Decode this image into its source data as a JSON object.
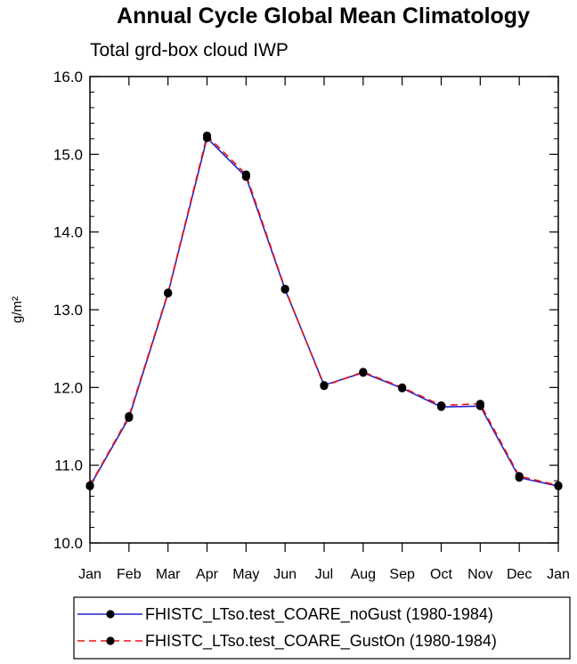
{
  "chart_data": {
    "type": "line",
    "title": "Annual Cycle Global Mean Climatology",
    "subtitle": "Total grd-box cloud IWP",
    "ylabel": "g/m²",
    "xlabel": "",
    "categories": [
      "Jan",
      "Feb",
      "Mar",
      "Apr",
      "May",
      "Jun",
      "Jul",
      "Aug",
      "Sep",
      "Oct",
      "Nov",
      "Dec",
      "Jan"
    ],
    "ylim": [
      10.0,
      16.0
    ],
    "yticks": [
      "10.0",
      "11.0",
      "12.0",
      "13.0",
      "14.0",
      "15.0",
      "16.0"
    ],
    "grid": false,
    "legend_position": "bottom",
    "series": [
      {
        "name": "FHISTC_LTso.test_COARE_noGust (1980-1984)",
        "color": "#2222cc",
        "dash": "solid",
        "marker": "filled-circle",
        "values": [
          10.73,
          11.61,
          13.21,
          15.21,
          14.71,
          13.26,
          12.03,
          12.19,
          11.99,
          11.75,
          11.76,
          10.84,
          10.73
        ]
      },
      {
        "name": "FHISTC_LTso.test_COARE_GustOn (1980-1984)",
        "color": "#ee1111",
        "dash": "dashed",
        "marker": "filled-circle",
        "values": [
          10.74,
          11.63,
          13.22,
          15.24,
          14.74,
          13.27,
          12.02,
          12.2,
          12.0,
          11.77,
          11.79,
          10.86,
          10.74
        ]
      }
    ]
  }
}
